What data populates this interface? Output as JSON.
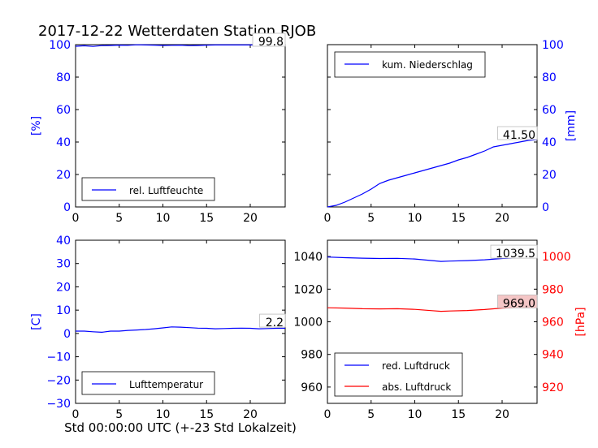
{
  "title": "2017-12-22 Wetterdaten Station RJOB",
  "footer_xlabel": "Std 00:00:00 UTC (+-23 Std Lokalzeit)",
  "colors": {
    "blue": "#0000ff",
    "red": "#ff0000",
    "axes": "#000000",
    "red_annot_bg": "#f4c6c6"
  },
  "chart_data": [
    {
      "id": "humidity",
      "type": "line",
      "xlim": [
        0,
        24
      ],
      "ylim": [
        0,
        100
      ],
      "xticks": [
        0,
        5,
        10,
        15,
        20
      ],
      "yticks": [
        0,
        20,
        40,
        60,
        80,
        100
      ],
      "ylabel": "[%]",
      "ylabel_side": "left",
      "legend": "lower-left",
      "series": [
        {
          "name": "rel. Luftfeuchte",
          "color": "blue",
          "x": [
            0,
            1,
            2,
            3,
            4,
            5,
            6,
            7,
            8,
            9,
            10,
            11,
            12,
            13,
            14,
            15,
            16,
            17,
            18,
            19,
            20,
            21,
            22,
            23,
            24
          ],
          "y": [
            99,
            99.3,
            98.9,
            99.4,
            99.5,
            99.7,
            99.6,
            99.9,
            99.8,
            99.7,
            99.5,
            99.6,
            99.7,
            99.4,
            99.5,
            99.7,
            99.8,
            99.8,
            99.8,
            99.8,
            99.8,
            99.8,
            99.8,
            99.8,
            99.8
          ]
        }
      ],
      "annotation": "99.8"
    },
    {
      "id": "precip",
      "type": "line",
      "xlim": [
        0,
        24
      ],
      "ylim": [
        0,
        100
      ],
      "xticks": [
        0,
        5,
        10,
        15,
        20
      ],
      "yticks": [
        0,
        20,
        40,
        60,
        80,
        100
      ],
      "ylabel": "[mm]",
      "ylabel_side": "right",
      "legend": "top-left",
      "series": [
        {
          "name": "kum. Niederschlag",
          "color": "blue",
          "x": [
            0,
            1,
            2,
            3,
            4,
            5,
            6,
            7,
            8,
            9,
            10,
            11,
            12,
            13,
            14,
            15,
            16,
            17,
            18,
            19,
            20,
            21,
            22,
            23,
            24
          ],
          "y": [
            0,
            1,
            3,
            5.5,
            8,
            11,
            14.5,
            16.5,
            18,
            19.5,
            21,
            22.5,
            24,
            25.5,
            27,
            29,
            30.5,
            32.5,
            34.5,
            37,
            38,
            39,
            40,
            41,
            41.5
          ]
        }
      ],
      "annotation": "41.50"
    },
    {
      "id": "temperature",
      "type": "line",
      "xlim": [
        0,
        24
      ],
      "ylim": [
        -30,
        40
      ],
      "xticks": [
        0,
        5,
        10,
        15,
        20
      ],
      "yticks": [
        -30,
        -20,
        -10,
        0,
        10,
        20,
        30,
        40
      ],
      "ylabel": "[C]",
      "ylabel_side": "left",
      "legend": "lower-left",
      "series": [
        {
          "name": "Lufttemperatur",
          "color": "blue",
          "x": [
            0,
            1,
            2,
            3,
            4,
            5,
            6,
            7,
            8,
            9,
            10,
            11,
            12,
            13,
            14,
            15,
            16,
            17,
            18,
            19,
            20,
            21,
            22,
            23,
            24
          ],
          "y": [
            1,
            1,
            0.7,
            0.5,
            1,
            1,
            1.3,
            1.5,
            1.7,
            2,
            2.4,
            2.8,
            2.7,
            2.5,
            2.3,
            2.2,
            2,
            2.1,
            2.2,
            2.3,
            2.2,
            2,
            2.1,
            2.2,
            2.2
          ]
        }
      ],
      "annotation": "2.2"
    },
    {
      "id": "pressure",
      "type": "line",
      "xlim": [
        0,
        24
      ],
      "ylim": [
        950,
        1050
      ],
      "xticks": [
        0,
        5,
        10,
        15,
        20
      ],
      "yticks": [
        960,
        980,
        1000,
        1020,
        1040
      ],
      "y2lim": [
        910,
        1010
      ],
      "y2ticks": [
        920,
        940,
        960,
        980,
        1000
      ],
      "y2label": "[hPa]",
      "legend": "lower-left",
      "series": [
        {
          "name": "red. Luftdruck",
          "color": "blue",
          "axis": "left",
          "x": [
            0,
            2,
            4,
            6,
            8,
            10,
            12,
            13,
            14,
            16,
            18,
            20,
            22,
            24
          ],
          "y": [
            1039.7,
            1039.3,
            1039,
            1038.8,
            1038.9,
            1038.5,
            1037.5,
            1037,
            1037.2,
            1037.5,
            1038,
            1038.8,
            1039.3,
            1039.5
          ]
        },
        {
          "name": "abs. Luftdruck",
          "color": "red",
          "axis": "right",
          "x": [
            0,
            2,
            4,
            6,
            8,
            10,
            12,
            13,
            14,
            16,
            18,
            20,
            22,
            24
          ],
          "y": [
            968.6,
            968.4,
            968,
            967.9,
            968,
            967.6,
            966.8,
            966.4,
            966.6,
            966.9,
            967.5,
            968.4,
            968.9,
            969.0
          ]
        }
      ],
      "annotation": "1039.5",
      "annotation2": "969.0"
    }
  ]
}
